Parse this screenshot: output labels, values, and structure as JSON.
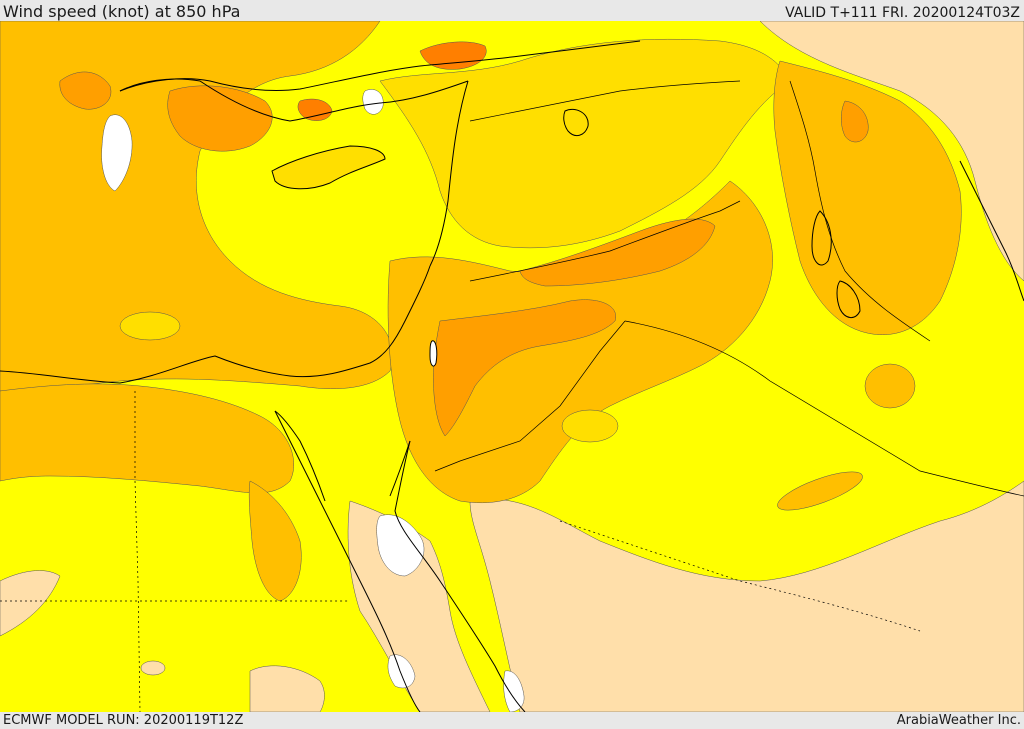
{
  "header": {
    "title": "Wind speed (knot) at 850 hPa",
    "valid_time": "VALID T+111 FRI. 20200124T03Z"
  },
  "footer": {
    "model_run": "ECMWF MODEL RUN: 20200119T12Z",
    "credit": "ArabiaWeather Inc."
  },
  "colors": {
    "very_light": "#ffdfaa",
    "yellow": "#ffff00",
    "gold": "#ffdf00",
    "light_orange": "#ffbf00",
    "orange": "#ff9f00",
    "dark_orange": "#ff7f00",
    "calm": "#ffffff",
    "coastline": "#000000"
  }
}
